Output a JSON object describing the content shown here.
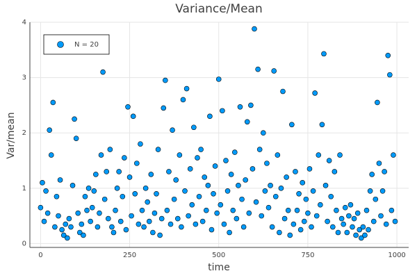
{
  "chart_data": {
    "type": "scatter",
    "title": "Variance/Mean",
    "xlabel": "time",
    "ylabel": "Var/mean",
    "xlim": [
      -30,
      1033
    ],
    "ylim": [
      -0.07,
      4.0
    ],
    "xticks": [
      0,
      250,
      500,
      750,
      1000
    ],
    "yticks": [
      0,
      1,
      2,
      3,
      4
    ],
    "grid": true,
    "legend": "top-left",
    "x": [
      0,
      5,
      10,
      15,
      20,
      25,
      30,
      35,
      40,
      45,
      50,
      55,
      60,
      65,
      70,
      75,
      80,
      85,
      90,
      95,
      100,
      105,
      110,
      115,
      120,
      125,
      130,
      135,
      140,
      145,
      150,
      155,
      160,
      165,
      170,
      175,
      180,
      185,
      190,
      195,
      200,
      205,
      210,
      215,
      220,
      225,
      230,
      235,
      240,
      245,
      250,
      255,
      260,
      265,
      270,
      275,
      280,
      285,
      290,
      295,
      300,
      305,
      310,
      315,
      320,
      325,
      330,
      335,
      340,
      345,
      350,
      355,
      360,
      365,
      370,
      375,
      380,
      385,
      390,
      395,
      400,
      405,
      410,
      415,
      420,
      425,
      430,
      435,
      440,
      445,
      450,
      455,
      460,
      465,
      470,
      475,
      480,
      485,
      490,
      495,
      500,
      505,
      510,
      515,
      520,
      525,
      530,
      535,
      540,
      545,
      550,
      555,
      560,
      565,
      570,
      575,
      580,
      585,
      590,
      595,
      600,
      605,
      610,
      615,
      620,
      625,
      630,
      635,
      640,
      645,
      650,
      655,
      660,
      665,
      670,
      675,
      680,
      685,
      690,
      695,
      700,
      705,
      710,
      715,
      720,
      725,
      730,
      735,
      740,
      745,
      750,
      755,
      760,
      765,
      770,
      775,
      780,
      785,
      790,
      795,
      800,
      805,
      810,
      815,
      820,
      825,
      830,
      835,
      840,
      845,
      850,
      855,
      860,
      865,
      870,
      875,
      880,
      885,
      890,
      895,
      900,
      905,
      910,
      915,
      920,
      925,
      930,
      935,
      940,
      945,
      950,
      955,
      960,
      965,
      970,
      975,
      980,
      985,
      990,
      995
    ],
    "series": [
      {
        "name": "N = 20",
        "color": "#009af9",
        "values": [
          0.65,
          1.1,
          0.4,
          0.95,
          0.55,
          2.05,
          1.6,
          2.55,
          0.3,
          0.85,
          0.5,
          1.15,
          0.25,
          0.15,
          0.35,
          0.1,
          0.45,
          0.3,
          1.05,
          2.25,
          1.9,
          0.55,
          0.2,
          0.35,
          0.15,
          0.85,
          0.6,
          1.0,
          0.4,
          0.65,
          0.95,
          1.25,
          0.3,
          0.55,
          1.6,
          3.1,
          0.8,
          1.3,
          0.45,
          1.7,
          0.3,
          0.2,
          0.6,
          1.0,
          1.3,
          0.4,
          0.85,
          1.55,
          0.25,
          2.47,
          1.2,
          0.5,
          2.3,
          0.9,
          1.45,
          0.35,
          1.8,
          0.6,
          0.3,
          1.0,
          0.75,
          0.4,
          1.25,
          0.2,
          0.55,
          0.9,
          1.7,
          0.15,
          0.45,
          2.45,
          2.95,
          0.6,
          1.3,
          0.35,
          2.05,
          0.8,
          1.15,
          0.45,
          1.6,
          0.3,
          2.6,
          0.95,
          2.8,
          0.5,
          1.35,
          0.7,
          2.1,
          0.35,
          1.55,
          0.85,
          1.7,
          0.4,
          1.2,
          0.6,
          1.05,
          2.3,
          0.25,
          0.9,
          1.4,
          0.55,
          2.97,
          0.7,
          2.4,
          0.35,
          1.5,
          0.95,
          0.2,
          1.25,
          0.6,
          1.65,
          0.45,
          1.05,
          2.47,
          0.8,
          0.3,
          1.15,
          2.2,
          0.55,
          2.5,
          1.35,
          3.88,
          0.75,
          3.15,
          1.7,
          0.5,
          2.0,
          0.95,
          1.45,
          0.65,
          1.05,
          0.3,
          3.12,
          0.85,
          1.6,
          0.2,
          1.0,
          2.75,
          0.45,
          1.2,
          0.6,
          0.15,
          2.15,
          0.35,
          1.3,
          0.6,
          0.9,
          0.25,
          1.1,
          0.4,
          0.8,
          0.55,
          1.35,
          0.3,
          0.95,
          2.72,
          0.5,
          1.6,
          0.7,
          2.15,
          3.43,
          1.05,
          0.4,
          1.5,
          0.85,
          0.3,
          1.3,
          0.6,
          0.2,
          1.6,
          0.45,
          0.35,
          0.65,
          0.2,
          0.5,
          0.7,
          0.3,
          0.45,
          0.15,
          0.55,
          0.25,
          0.1,
          0.3,
          0.15,
          0.6,
          0.25,
          0.95,
          1.25,
          0.4,
          0.8,
          2.55,
          1.45,
          0.5,
          0.95,
          1.3,
          0.35,
          3.4,
          3.05,
          0.6,
          1.6,
          0.4
        ]
      }
    ]
  }
}
